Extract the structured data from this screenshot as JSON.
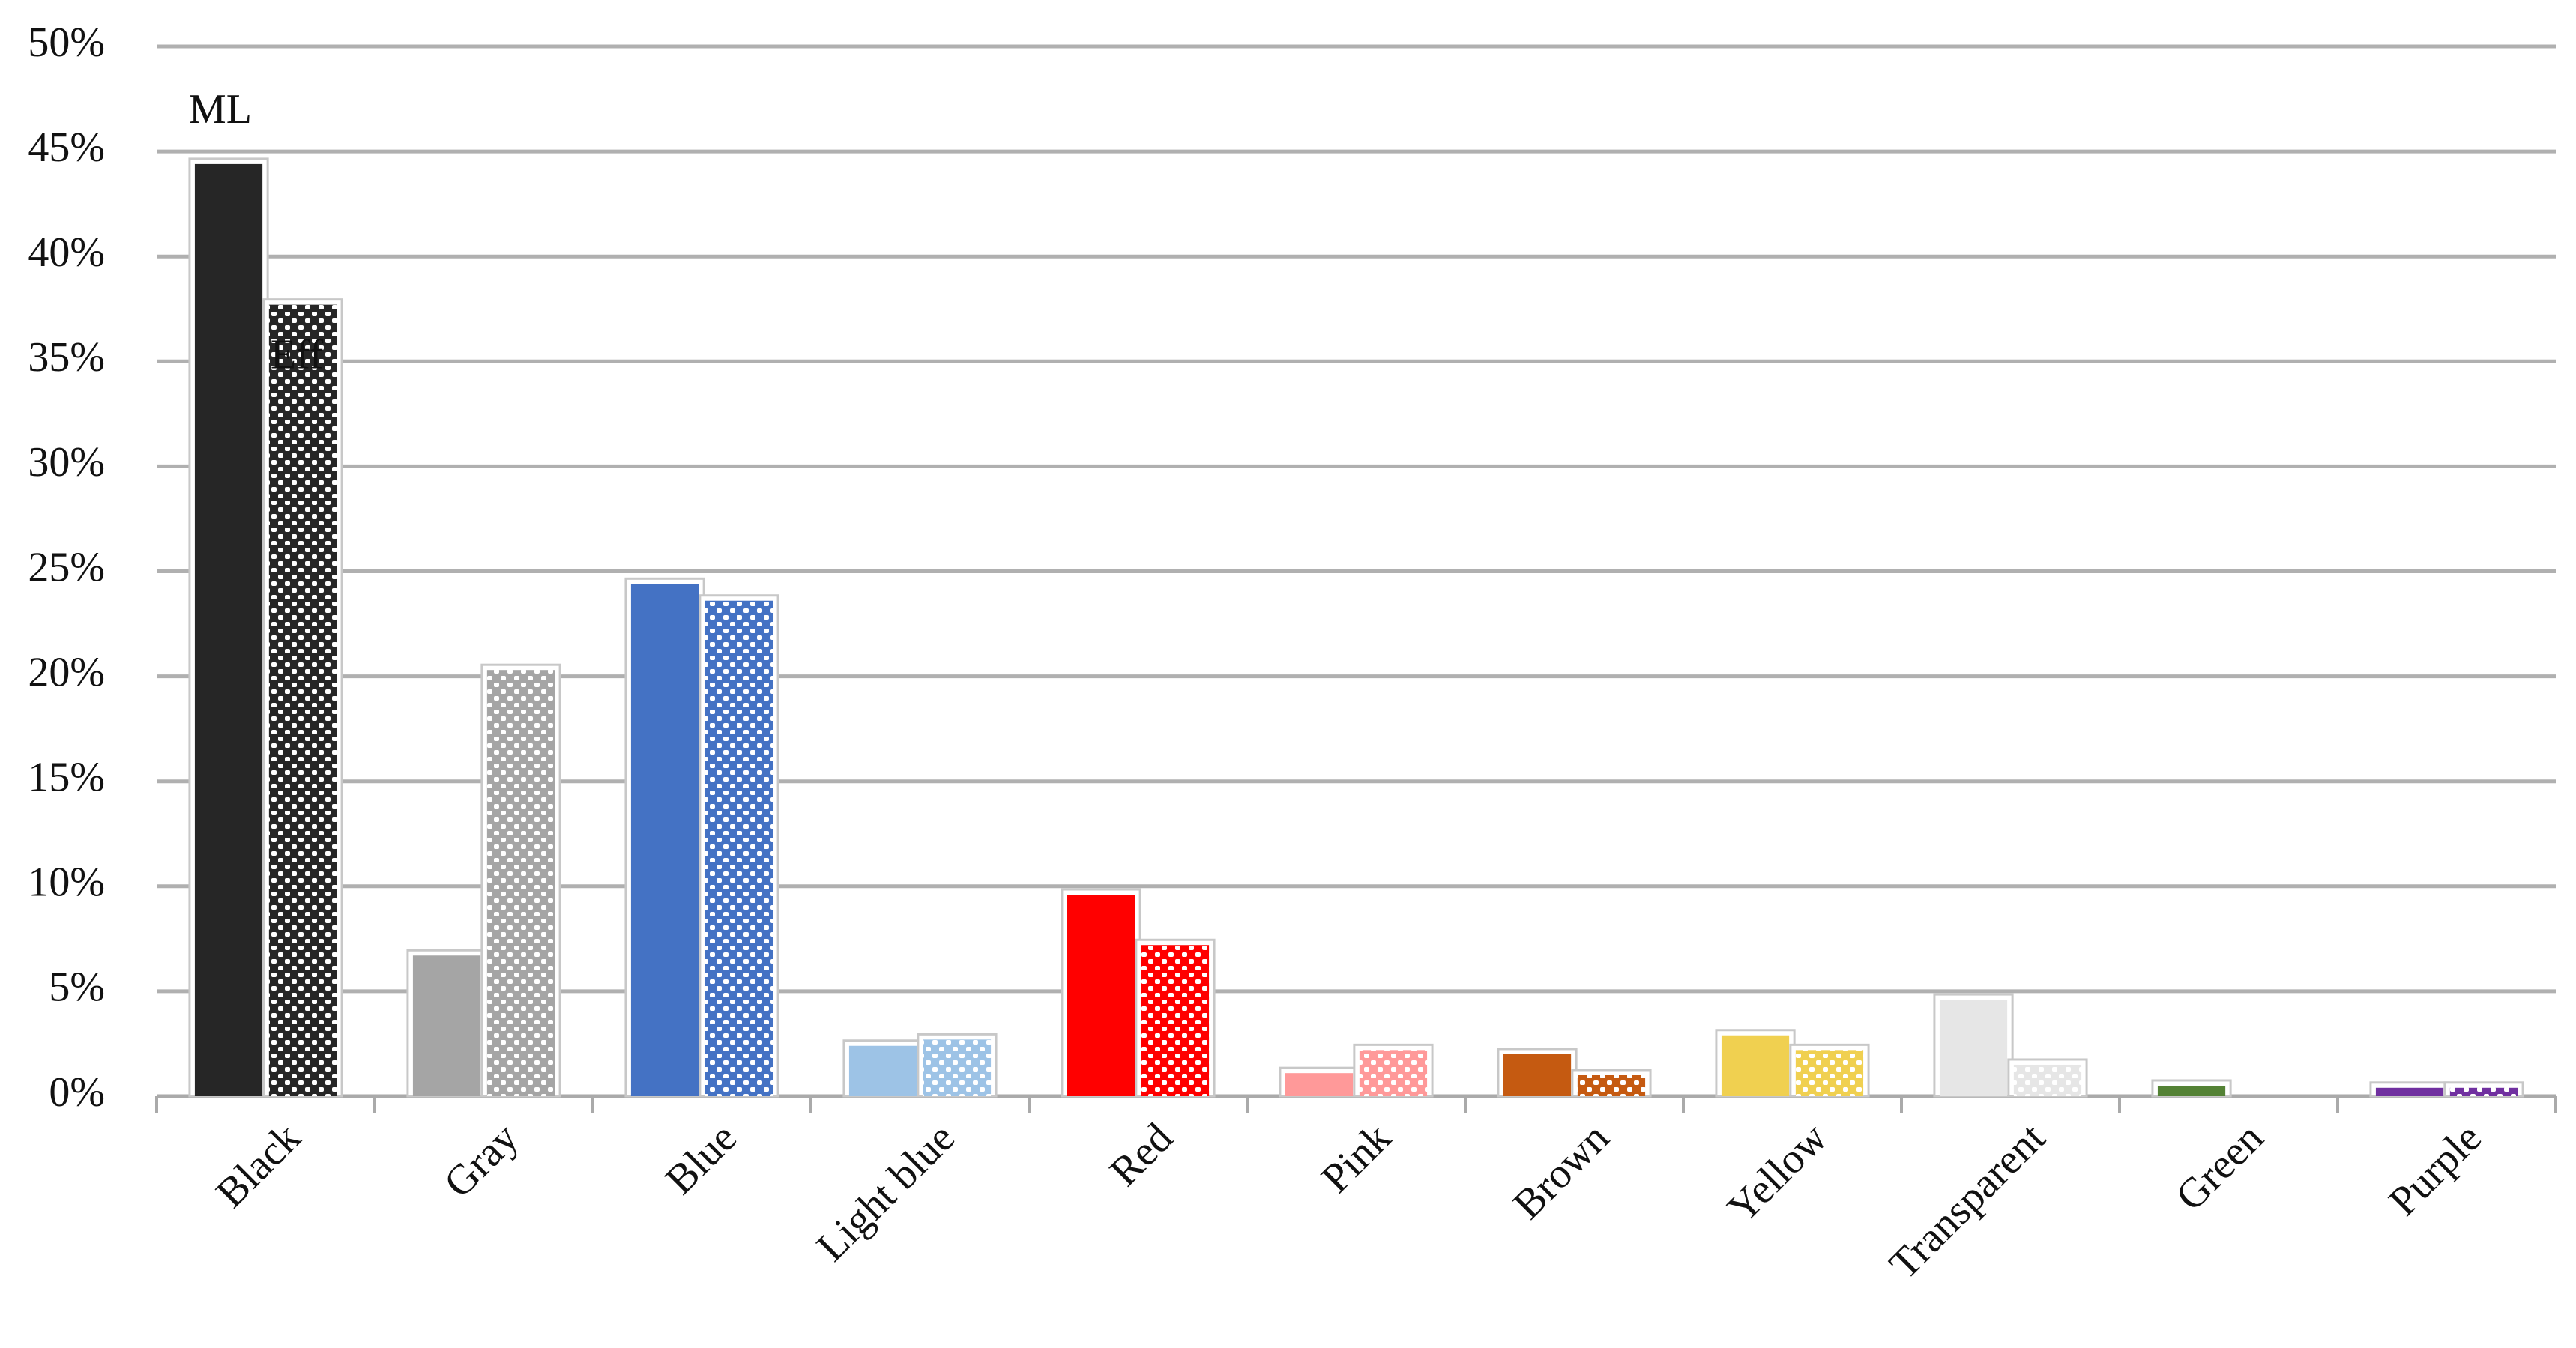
{
  "chart_data": {
    "type": "bar",
    "categories": [
      "Black",
      "Gray",
      "Blue",
      "Light blue",
      "Red",
      "Pink",
      "Brown",
      "Yellow",
      "Transparent",
      "Green",
      "Purple"
    ],
    "colors": [
      "#262626",
      "#a5a5a5",
      "#4472c4",
      "#9dc3e6",
      "#ff0000",
      "#ff9999",
      "#c55a11",
      "#f0d050",
      "#e6e6e6",
      "#548235",
      "#7030a0"
    ],
    "series": [
      {
        "name": "ML",
        "pattern": "solid",
        "values": [
          44.4,
          6.7,
          24.4,
          2.4,
          9.6,
          1.1,
          2.0,
          2.9,
          4.6,
          0.5,
          0.4
        ]
      },
      {
        "name": "Eff",
        "pattern": "dots",
        "values": [
          37.7,
          20.3,
          23.6,
          2.7,
          7.2,
          2.2,
          1.0,
          2.2,
          1.5,
          0,
          0.4
        ]
      }
    ],
    "ylim": [
      0,
      50
    ],
    "yticks": [
      {
        "value": 0,
        "label": "0%"
      },
      {
        "value": 5,
        "label": "5%"
      },
      {
        "value": 10,
        "label": "10%"
      },
      {
        "value": 15,
        "label": "15%"
      },
      {
        "value": 20,
        "label": "20%"
      },
      {
        "value": 25,
        "label": "25%"
      },
      {
        "value": 30,
        "label": "30%"
      },
      {
        "value": 35,
        "label": "35%"
      },
      {
        "value": 40,
        "label": "40%"
      },
      {
        "value": 45,
        "label": "45%"
      },
      {
        "value": 50,
        "label": "50%"
      }
    ],
    "grid": true
  }
}
